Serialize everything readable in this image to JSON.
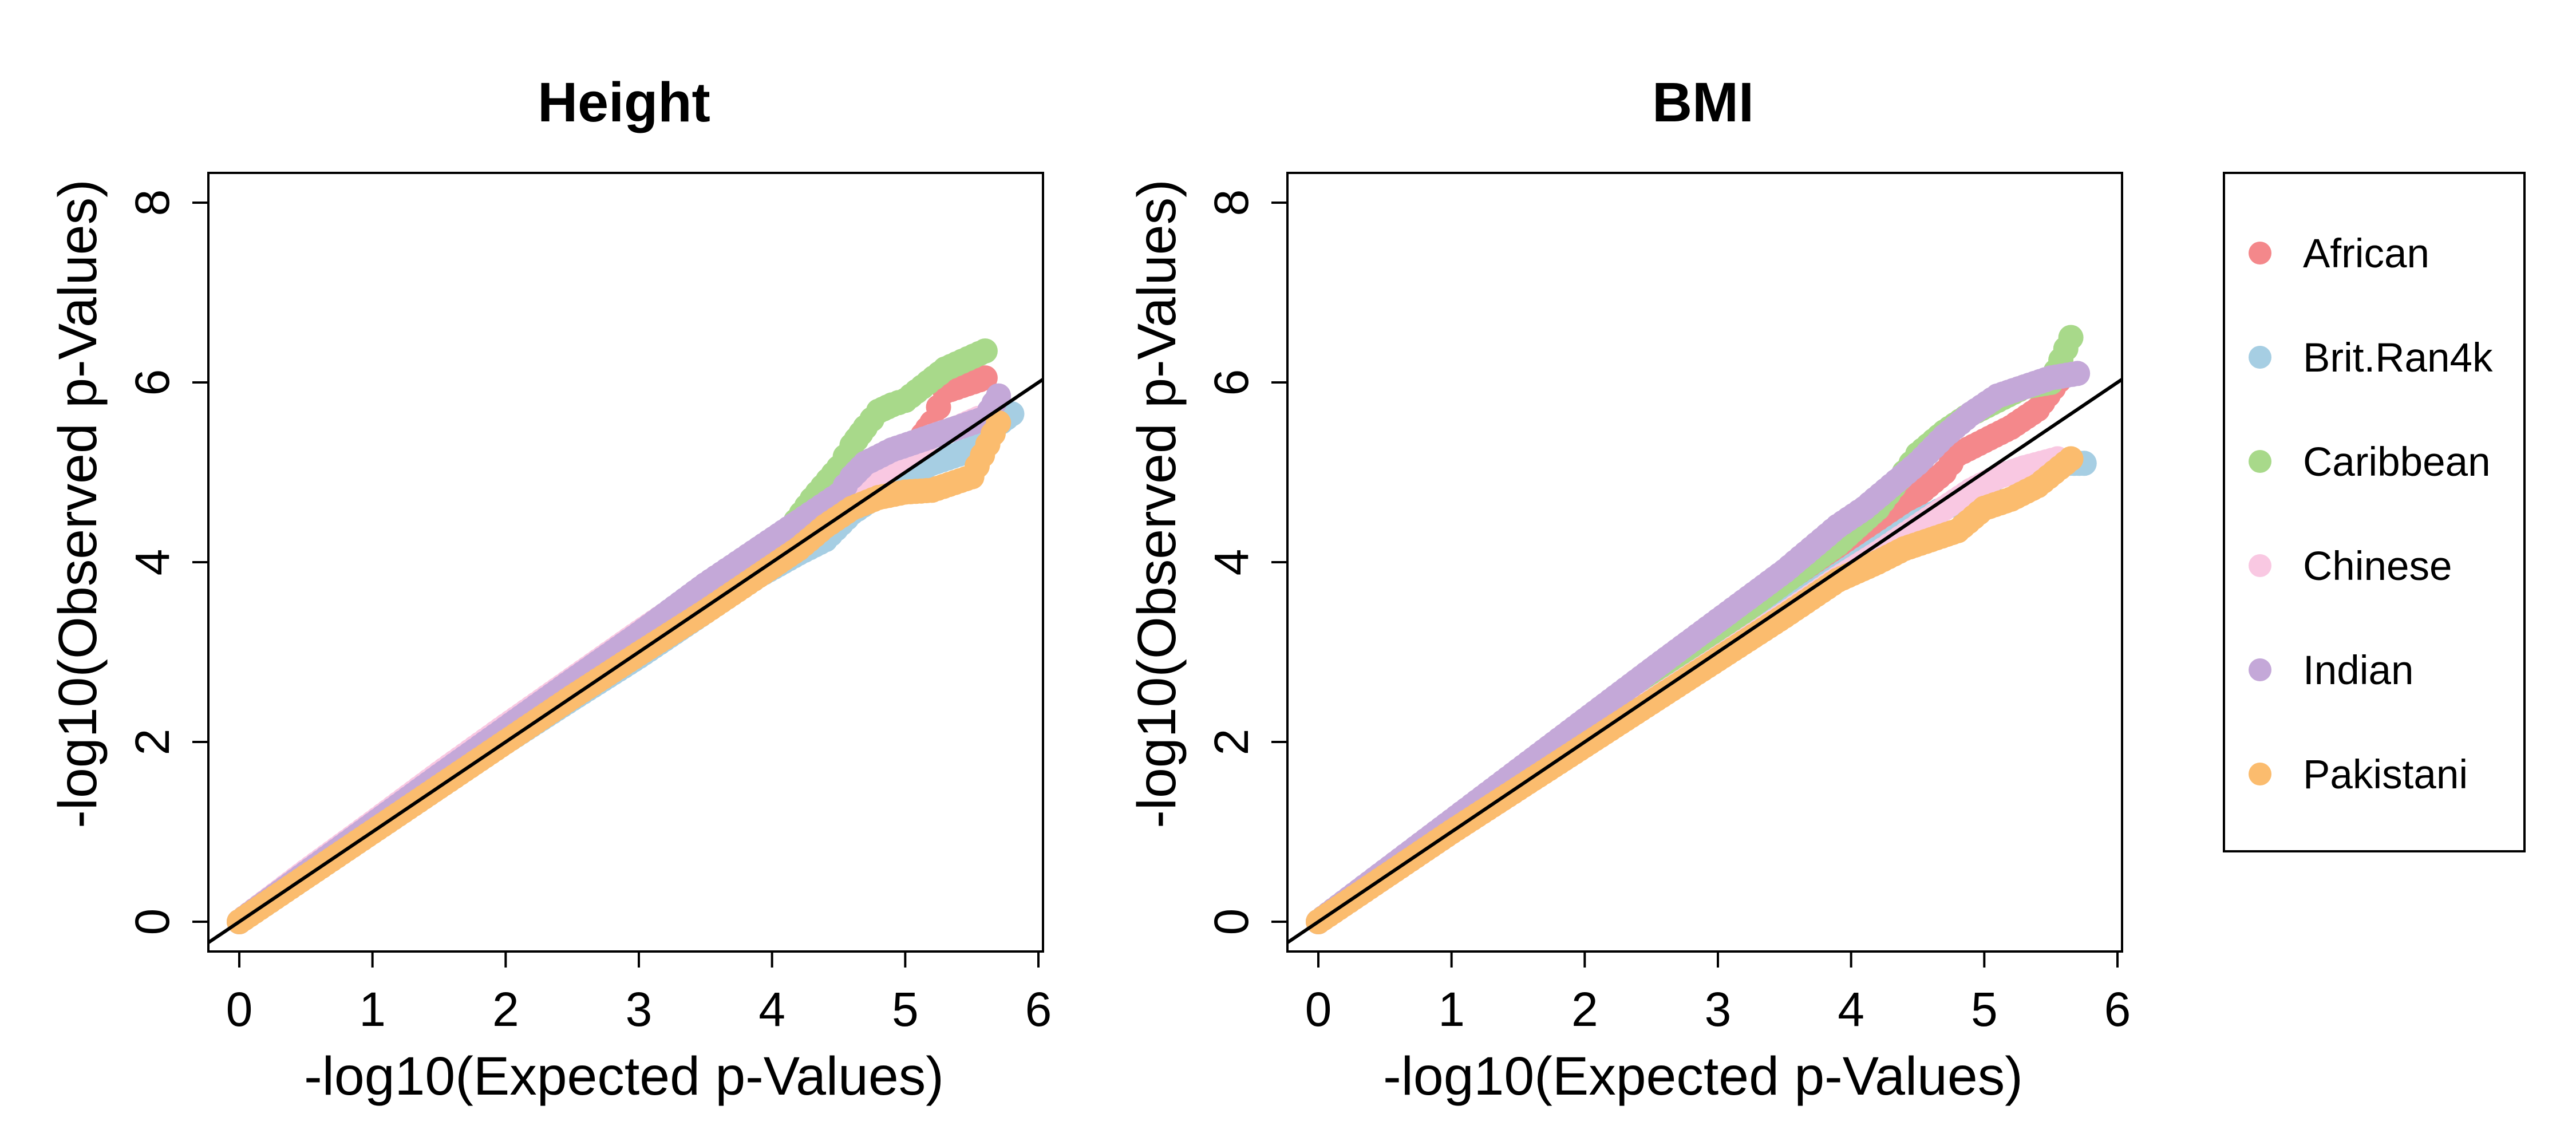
{
  "figure": {
    "type": "qq-plot"
  },
  "chart_data": [
    {
      "type": "scatter",
      "title": "Height",
      "xlabel": "-log10(Expected p-Values)",
      "ylabel": "-log10(Observed p-Values)",
      "xlim": [
        0,
        6
      ],
      "ylim": [
        0,
        8
      ],
      "xticks": [
        "0",
        "1",
        "2",
        "3",
        "4",
        "5",
        "6"
      ],
      "yticks": [
        "0",
        "2",
        "4",
        "6",
        "8"
      ],
      "reference_line": {
        "slope": 1,
        "intercept": 0,
        "color": "#000000"
      },
      "grid": false,
      "series": [
        {
          "name": "African",
          "color": "#F4888B",
          "points": [
            [
              0,
              0
            ],
            [
              0.5,
              0.52
            ],
            [
              1,
              1.03
            ],
            [
              1.5,
              1.55
            ],
            [
              2,
              2.06
            ],
            [
              2.5,
              2.58
            ],
            [
              3,
              3.1
            ],
            [
              3.5,
              3.62
            ],
            [
              3.9,
              4.02
            ],
            [
              4.2,
              4.35
            ],
            [
              4.5,
              4.65
            ],
            [
              4.7,
              4.85
            ],
            [
              4.9,
              5.1
            ],
            [
              5.0,
              5.2
            ],
            [
              5.1,
              5.35
            ],
            [
              5.2,
              5.55
            ],
            [
              5.3,
              5.9
            ],
            [
              5.6,
              6.05
            ]
          ]
        },
        {
          "name": "Brit.Ran4k",
          "color": "#A6CEE3",
          "points": [
            [
              0,
              0
            ],
            [
              0.5,
              0.5
            ],
            [
              1,
              1.0
            ],
            [
              1.5,
              1.5
            ],
            [
              2,
              2.0
            ],
            [
              2.5,
              2.48
            ],
            [
              3,
              2.95
            ],
            [
              3.5,
              3.45
            ],
            [
              3.9,
              3.85
            ],
            [
              4.2,
              4.1
            ],
            [
              4.4,
              4.25
            ],
            [
              4.6,
              4.55
            ],
            [
              4.8,
              4.75
            ],
            [
              4.9,
              4.9
            ],
            [
              5.0,
              4.95
            ],
            [
              5.2,
              5.1
            ],
            [
              5.4,
              5.2
            ],
            [
              5.8,
              5.65
            ]
          ]
        },
        {
          "name": "Caribbean",
          "color": "#A8D98A",
          "points": [
            [
              0,
              0
            ],
            [
              0.5,
              0.52
            ],
            [
              1,
              1.05
            ],
            [
              1.5,
              1.58
            ],
            [
              2,
              2.1
            ],
            [
              2.5,
              2.62
            ],
            [
              3,
              3.15
            ],
            [
              3.5,
              3.68
            ],
            [
              3.9,
              4.1
            ],
            [
              4.1,
              4.3
            ],
            [
              4.3,
              4.7
            ],
            [
              4.5,
              5.05
            ],
            [
              4.6,
              5.3
            ],
            [
              4.7,
              5.5
            ],
            [
              4.8,
              5.68
            ],
            [
              4.9,
              5.75
            ],
            [
              5.0,
              5.8
            ],
            [
              5.3,
              6.15
            ],
            [
              5.6,
              6.35
            ]
          ]
        },
        {
          "name": "Chinese",
          "color": "#F9C8E2",
          "points": [
            [
              0,
              0
            ],
            [
              0.5,
              0.56
            ],
            [
              1,
              1.1
            ],
            [
              1.5,
              1.65
            ],
            [
              2,
              2.18
            ],
            [
              2.5,
              2.7
            ],
            [
              3,
              3.22
            ],
            [
              3.5,
              3.72
            ],
            [
              3.9,
              4.1
            ],
            [
              4.2,
              4.38
            ],
            [
              4.5,
              4.65
            ],
            [
              4.8,
              4.95
            ],
            [
              5.0,
              5.15
            ],
            [
              5.2,
              5.4
            ],
            [
              5.4,
              5.5
            ],
            [
              5.55,
              5.6
            ]
          ]
        },
        {
          "name": "Indian",
          "color": "#C4A8D8",
          "points": [
            [
              0,
              0
            ],
            [
              0.5,
              0.54
            ],
            [
              1,
              1.08
            ],
            [
              1.5,
              1.62
            ],
            [
              2,
              2.15
            ],
            [
              2.5,
              2.68
            ],
            [
              3,
              3.2
            ],
            [
              3.5,
              3.75
            ],
            [
              3.9,
              4.15
            ],
            [
              4.2,
              4.45
            ],
            [
              4.5,
              4.75
            ],
            [
              4.6,
              4.95
            ],
            [
              4.7,
              5.1
            ],
            [
              4.9,
              5.25
            ],
            [
              5.1,
              5.35
            ],
            [
              5.3,
              5.45
            ],
            [
              5.6,
              5.6
            ],
            [
              5.7,
              5.85
            ]
          ]
        },
        {
          "name": "Pakistani",
          "color": "#FBBC6E",
          "points": [
            [
              0,
              0
            ],
            [
              0.5,
              0.5
            ],
            [
              1,
              1.0
            ],
            [
              1.5,
              1.5
            ],
            [
              2,
              2.0
            ],
            [
              2.5,
              2.5
            ],
            [
              3,
              2.98
            ],
            [
              3.5,
              3.45
            ],
            [
              3.9,
              3.85
            ],
            [
              4.2,
              4.15
            ],
            [
              4.4,
              4.4
            ],
            [
              4.6,
              4.6
            ],
            [
              4.8,
              4.72
            ],
            [
              5.0,
              4.78
            ],
            [
              5.2,
              4.8
            ],
            [
              5.5,
              4.95
            ],
            [
              5.7,
              5.55
            ]
          ]
        }
      ]
    },
    {
      "type": "scatter",
      "title": "BMI",
      "xlabel": "-log10(Expected p-Values)",
      "ylabel": "-log10(Observed p-Values)",
      "xlim": [
        0,
        6
      ],
      "ylim": [
        0,
        8
      ],
      "xticks": [
        "0",
        "1",
        "2",
        "3",
        "4",
        "5",
        "6"
      ],
      "yticks": [
        "0",
        "2",
        "4",
        "6",
        "8"
      ],
      "reference_line": {
        "slope": 1,
        "intercept": 0,
        "color": "#000000"
      },
      "grid": false,
      "series": [
        {
          "name": "African",
          "color": "#F4888B",
          "points": [
            [
              0,
              0
            ],
            [
              0.5,
              0.53
            ],
            [
              1,
              1.06
            ],
            [
              1.5,
              1.6
            ],
            [
              2,
              2.12
            ],
            [
              2.5,
              2.64
            ],
            [
              3,
              3.16
            ],
            [
              3.5,
              3.7
            ],
            [
              3.9,
              4.1
            ],
            [
              4.2,
              4.45
            ],
            [
              4.5,
              4.75
            ],
            [
              4.7,
              5.0
            ],
            [
              4.8,
              5.2
            ],
            [
              5.0,
              5.35
            ],
            [
              5.2,
              5.5
            ],
            [
              5.4,
              5.7
            ],
            [
              5.6,
              6.1
            ]
          ]
        },
        {
          "name": "Brit.Ran4k",
          "color": "#A6CEE3",
          "points": [
            [
              0,
              0
            ],
            [
              0.5,
              0.5
            ],
            [
              1,
              1.0
            ],
            [
              1.5,
              1.5
            ],
            [
              2,
              2.0
            ],
            [
              2.5,
              2.48
            ],
            [
              3,
              2.96
            ],
            [
              3.5,
              3.45
            ],
            [
              3.9,
              3.85
            ],
            [
              4.2,
              4.15
            ],
            [
              4.5,
              4.45
            ],
            [
              4.7,
              4.6
            ],
            [
              4.9,
              4.75
            ],
            [
              5.1,
              4.95
            ],
            [
              5.3,
              5.05
            ],
            [
              5.6,
              5.1
            ],
            [
              5.75,
              5.1
            ]
          ]
        },
        {
          "name": "Caribbean",
          "color": "#A8D98A",
          "points": [
            [
              0,
              0
            ],
            [
              0.5,
              0.54
            ],
            [
              1,
              1.08
            ],
            [
              1.5,
              1.63
            ],
            [
              2,
              2.16
            ],
            [
              2.5,
              2.7
            ],
            [
              3,
              3.24
            ],
            [
              3.5,
              3.78
            ],
            [
              3.9,
              4.2
            ],
            [
              4.2,
              4.6
            ],
            [
              4.4,
              5.0
            ],
            [
              4.5,
              5.2
            ],
            [
              4.7,
              5.45
            ],
            [
              4.9,
              5.65
            ],
            [
              5.1,
              5.8
            ],
            [
              5.3,
              5.95
            ],
            [
              5.5,
              6.0
            ],
            [
              5.65,
              6.5
            ]
          ]
        },
        {
          "name": "Chinese",
          "color": "#F9C8E2",
          "points": [
            [
              0,
              0
            ],
            [
              0.5,
              0.5
            ],
            [
              1,
              1.0
            ],
            [
              1.5,
              1.48
            ],
            [
              2,
              1.97
            ],
            [
              2.5,
              2.45
            ],
            [
              3,
              2.93
            ],
            [
              3.5,
              3.42
            ],
            [
              3.9,
              3.82
            ],
            [
              4.2,
              4.1
            ],
            [
              4.5,
              4.4
            ],
            [
              4.7,
              4.6
            ],
            [
              4.9,
              4.8
            ],
            [
              5.1,
              4.95
            ],
            [
              5.3,
              5.05
            ],
            [
              5.55,
              5.15
            ]
          ]
        },
        {
          "name": "Indian",
          "color": "#C4A8D8",
          "points": [
            [
              0,
              0
            ],
            [
              0.5,
              0.56
            ],
            [
              1,
              1.12
            ],
            [
              1.5,
              1.68
            ],
            [
              2,
              2.24
            ],
            [
              2.5,
              2.8
            ],
            [
              3,
              3.35
            ],
            [
              3.5,
              3.9
            ],
            [
              3.9,
              4.4
            ],
            [
              4.1,
              4.6
            ],
            [
              4.3,
              4.85
            ],
            [
              4.5,
              5.1
            ],
            [
              4.7,
              5.4
            ],
            [
              4.9,
              5.65
            ],
            [
              5.1,
              5.85
            ],
            [
              5.3,
              5.95
            ],
            [
              5.5,
              6.05
            ],
            [
              5.7,
              6.1
            ]
          ]
        },
        {
          "name": "Pakistani",
          "color": "#FBBC6E",
          "points": [
            [
              0,
              0
            ],
            [
              0.5,
              0.5
            ],
            [
              1,
              1.0
            ],
            [
              1.5,
              1.48
            ],
            [
              2,
              1.96
            ],
            [
              2.5,
              2.44
            ],
            [
              3,
              2.92
            ],
            [
              3.5,
              3.4
            ],
            [
              3.9,
              3.8
            ],
            [
              4.2,
              4.0
            ],
            [
              4.4,
              4.15
            ],
            [
              4.6,
              4.25
            ],
            [
              4.8,
              4.35
            ],
            [
              5.0,
              4.6
            ],
            [
              5.2,
              4.7
            ],
            [
              5.4,
              4.85
            ],
            [
              5.65,
              5.15
            ]
          ]
        }
      ]
    }
  ],
  "legend": {
    "placement": "right",
    "items": [
      "African",
      "Brit.Ran4k",
      "Caribbean",
      "Chinese",
      "Indian",
      "Pakistani"
    ]
  }
}
